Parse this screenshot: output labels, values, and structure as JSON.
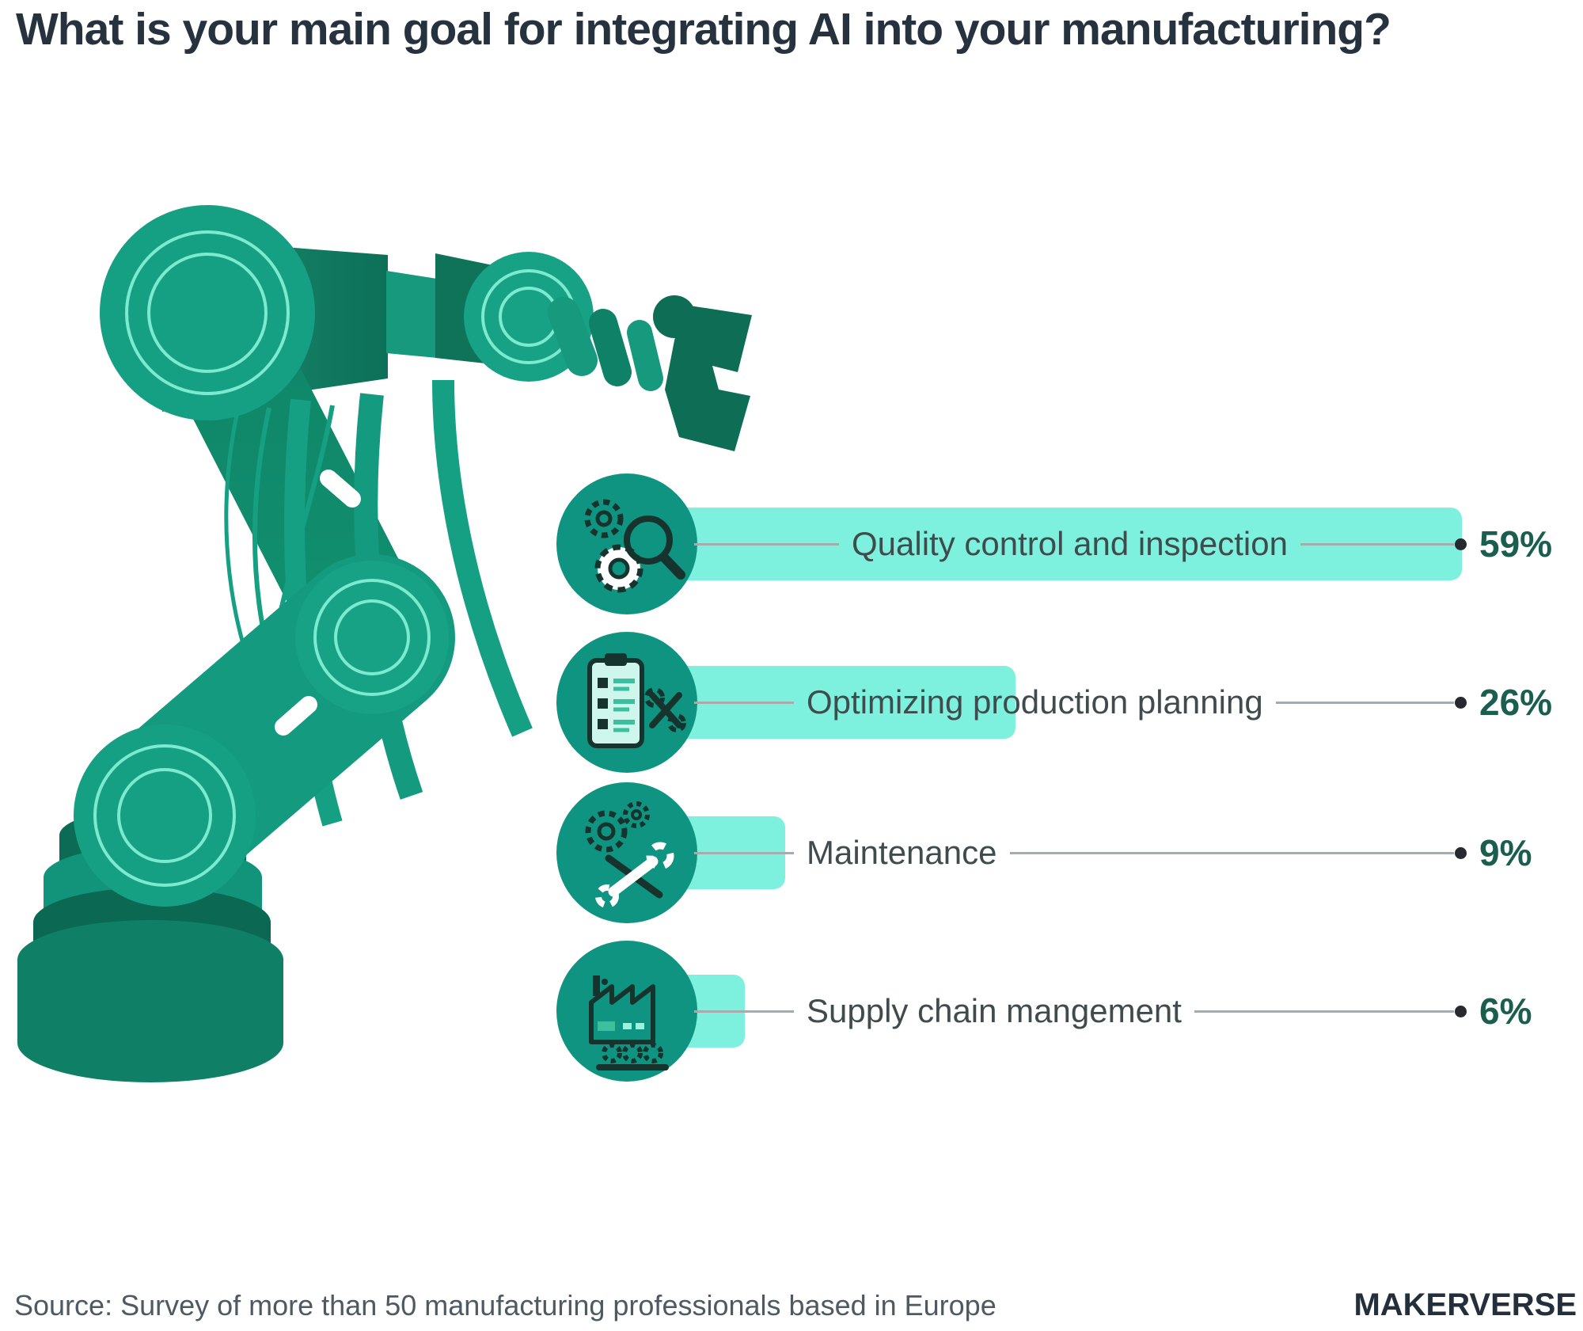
{
  "title": "What is your main goal for integrating AI into your manufacturing?",
  "chart_data": {
    "type": "bar",
    "orientation": "horizontal",
    "title": "What is your main goal for integrating AI into your manufacturing?",
    "categories": [
      "Quality control and inspection",
      "Optimizing production planning",
      "Maintenance",
      "Supply chain mangement"
    ],
    "values": [
      59,
      26,
      9,
      6
    ],
    "value_labels": [
      "59%",
      "26%",
      "9%",
      "6%"
    ],
    "unit": "%",
    "xlim": [
      0,
      59
    ],
    "legend": false,
    "grid": false,
    "bar_color": "#7df1dd",
    "icon_names": [
      "quality-control-inspection-icon",
      "production-planning-icon",
      "maintenance-icon",
      "supply-chain-icon"
    ]
  },
  "footer": {
    "source": "Source: Survey of more than 50 manufacturing professionals based in Europe",
    "brand": "MAKERVERSE"
  },
  "colors": {
    "ink": "#26323d",
    "label": "#404b4d",
    "pct": "#1b5e4f",
    "line": "#a6abae",
    "dot": "#26292e",
    "bar": "#7df1dd",
    "circle": "#0e9480",
    "icon-ink": "#16332e",
    "icon-fill": "#cff6ec",
    "rb-main": "#16a083",
    "rb-mid": "#0f8568",
    "rb-dark": "#0c6b55",
    "rb-deep": "#0e6e55",
    "rb-ring": "#7ce9d1",
    "source": "#4e5a62",
    "brand": "#232f3b"
  }
}
